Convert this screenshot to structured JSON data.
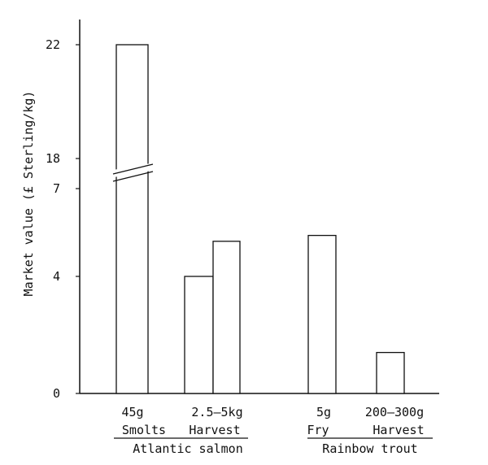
{
  "chart_data": {
    "type": "bar",
    "title": "",
    "ylabel": "Market value (£ Sterling/kg)",
    "xlabel": "",
    "axis_break": {
      "lower_top": 7,
      "upper_bottom": 18
    },
    "yticks": [
      {
        "value": 0,
        "label": "0"
      },
      {
        "value": 4,
        "label": "4"
      },
      {
        "value": 7,
        "label": "7"
      },
      {
        "value": 18,
        "label": "18"
      },
      {
        "value": 22,
        "label": "22"
      }
    ],
    "categories": [
      "45g",
      "2.5–5kg",
      "",
      "5g",
      "200–300g"
    ],
    "values": [
      22,
      4.0,
      5.2,
      5.4,
      1.4
    ],
    "stage_labels": [
      "Smolts",
      "Harvest",
      "Fry",
      "Harvest"
    ],
    "species_labels": [
      "Atlantic salmon",
      "Rainbow trout"
    ],
    "grid": false,
    "legend": "none"
  }
}
